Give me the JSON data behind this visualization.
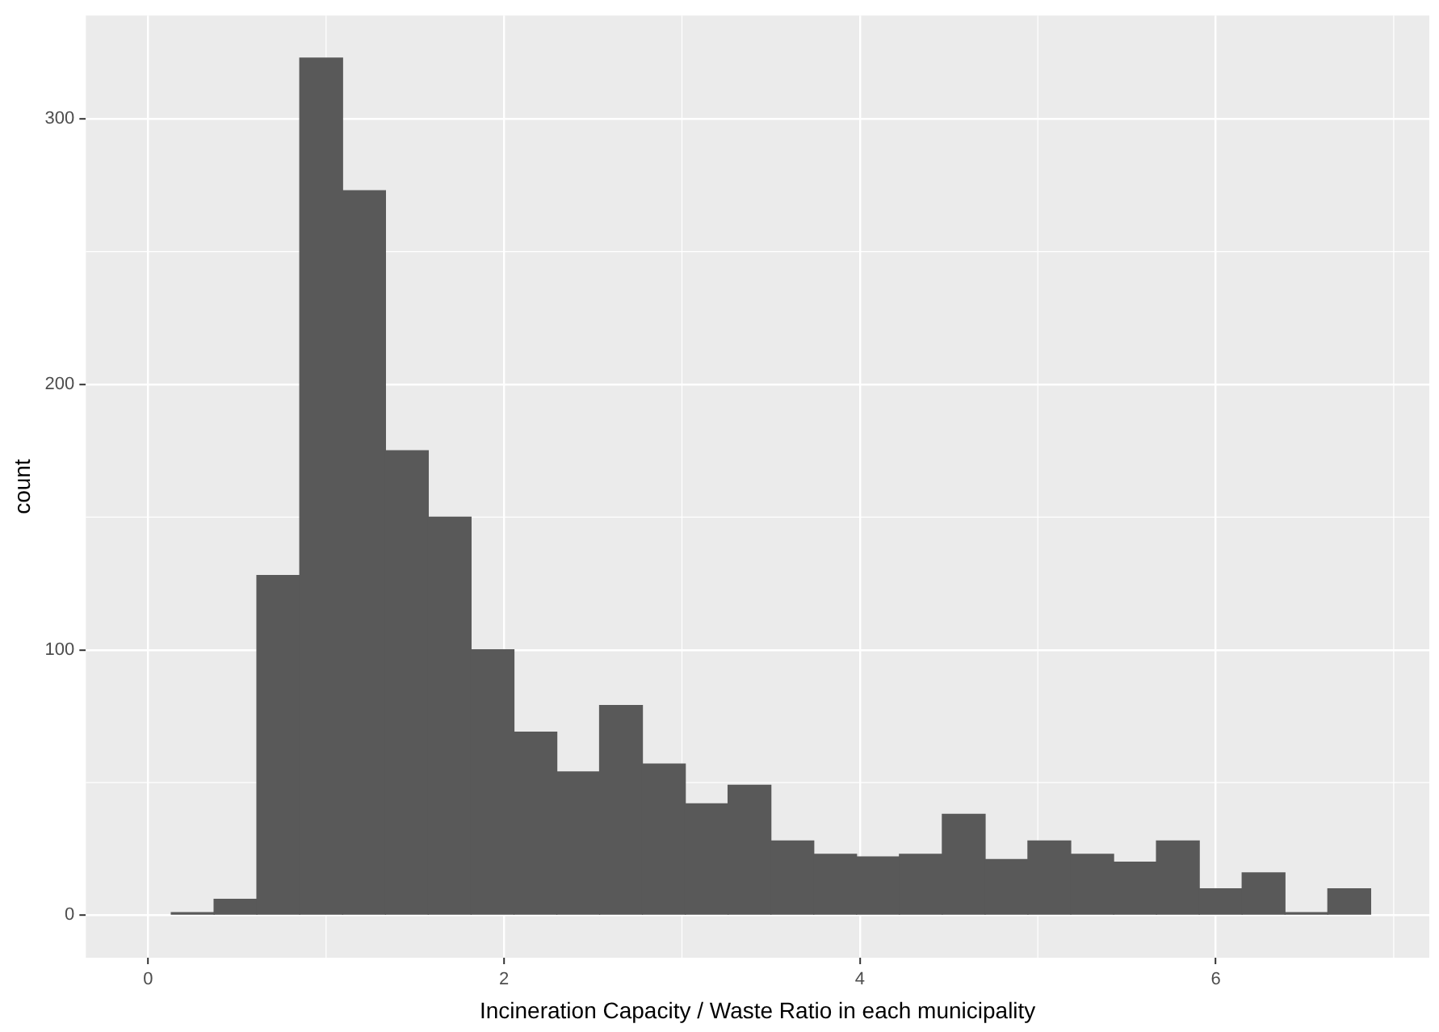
{
  "chart_data": {
    "type": "histogram",
    "xlabel": "Incineration Capacity / Waste Ratio in each municipality",
    "ylabel": "count",
    "bins": [
      0.13,
      0.371,
      0.611,
      0.852,
      1.093,
      1.334,
      1.574,
      1.815,
      2.056,
      2.297,
      2.537,
      2.778,
      3.019,
      3.259,
      3.5,
      3.741,
      3.981,
      4.222,
      4.463,
      4.704,
      4.944,
      5.185,
      5.426,
      5.667,
      5.907,
      6.148,
      6.389,
      6.63,
      6.87
    ],
    "values": [
      1,
      6,
      128,
      323,
      273,
      175,
      150,
      100,
      69,
      54,
      79,
      57,
      42,
      49,
      28,
      23,
      22,
      23,
      38,
      21,
      28,
      23,
      20,
      28,
      10,
      16,
      1,
      10
    ],
    "color": "#595959",
    "xlim": [
      -0.35,
      7.2
    ],
    "xticks": [
      0,
      2,
      4,
      6
    ],
    "ylim": [
      -16,
      339
    ],
    "yticks": [
      0,
      100,
      200,
      300
    ],
    "grid": true,
    "legend": false
  }
}
